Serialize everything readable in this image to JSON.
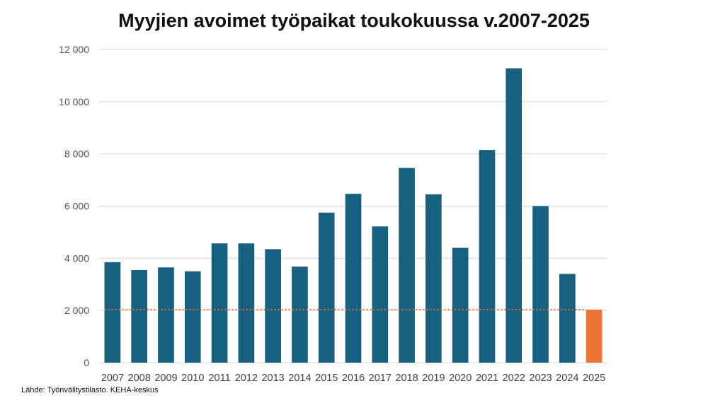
{
  "chart_data": {
    "type": "bar",
    "title": "Myyjien avoimet työpaikat toukokuussa v.2007-2025",
    "categories": [
      "2007",
      "2008",
      "2009",
      "2010",
      "2011",
      "2012",
      "2013",
      "2014",
      "2015",
      "2016",
      "2017",
      "2018",
      "2019",
      "2020",
      "2021",
      "2022",
      "2023",
      "2024",
      "2025"
    ],
    "values": [
      3850,
      3550,
      3650,
      3500,
      4570,
      4570,
      4350,
      3680,
      5750,
      6470,
      5220,
      7460,
      6450,
      4400,
      8150,
      11280,
      6000,
      3400,
      2030
    ],
    "ylim": [
      0,
      12000
    ],
    "yticks": [
      0,
      2000,
      4000,
      6000,
      8000,
      10000,
      12000
    ],
    "ytick_labels": [
      "0",
      "2 000",
      "4 000",
      "6 000",
      "8 000",
      "10 000",
      "12 000"
    ],
    "grid": true,
    "reference_line": {
      "value": 2030,
      "style": "dotted",
      "color": "#e0703a"
    },
    "colors": {
      "bar": "#17607f",
      "highlight": "#ed7434",
      "gridline": "#d9d9d9"
    },
    "highlight_index": 18
  },
  "source": "Lähde: Työnvälitystilasto. KEHA-keskus"
}
